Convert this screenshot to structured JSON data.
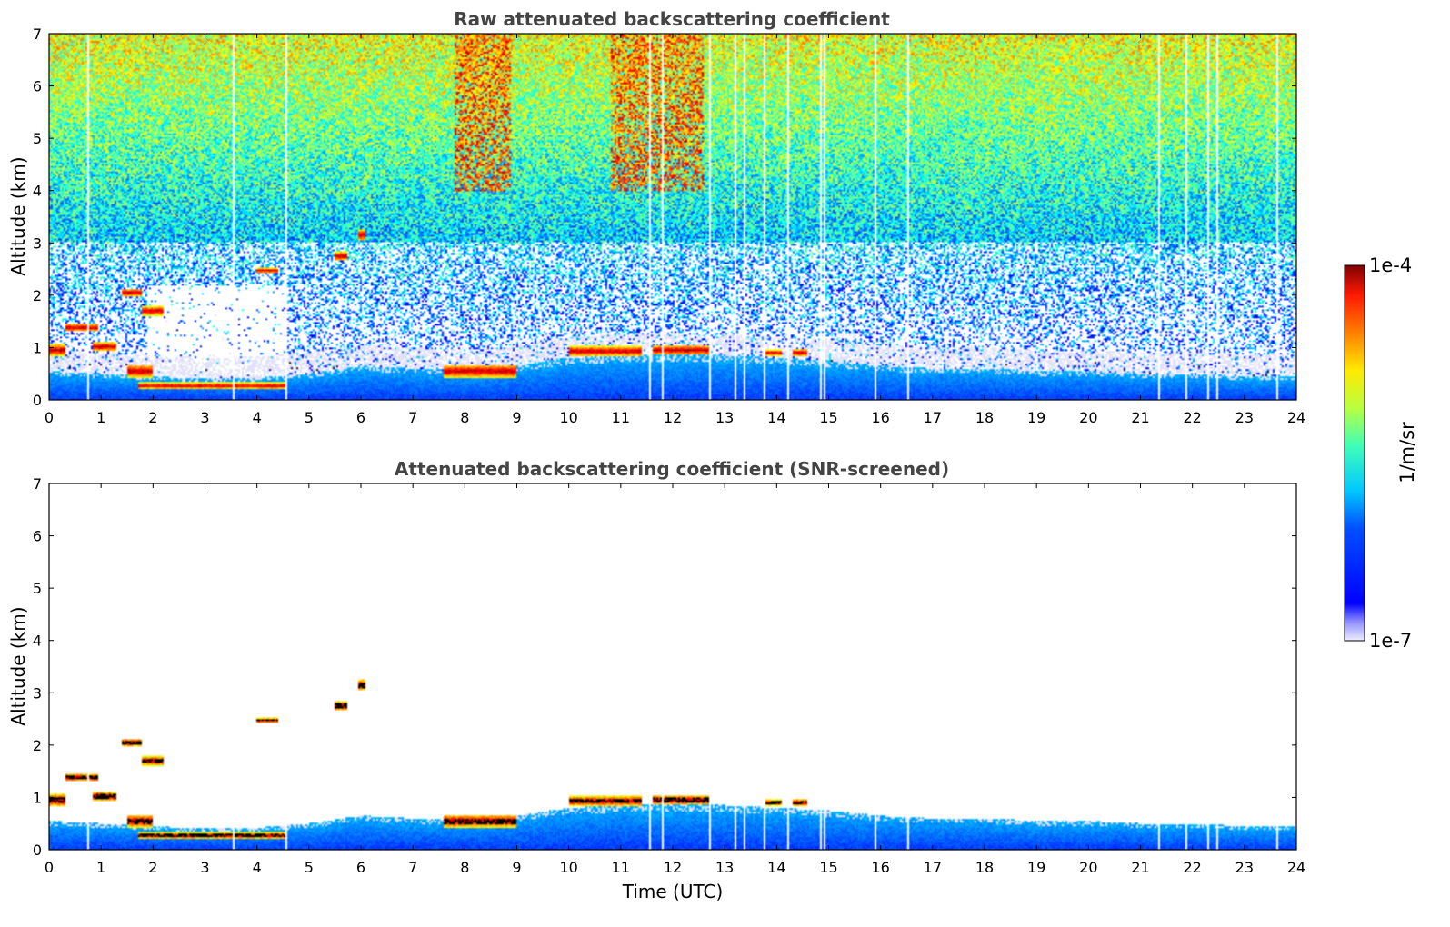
{
  "chart_data": [
    {
      "type": "heatmap",
      "title": "Raw attenuated backscattering coefficient",
      "xlabel": "",
      "ylabel": "Altitude (km)",
      "xlim": [
        0,
        24
      ],
      "ylim": [
        0,
        7
      ],
      "xticks": [
        "0",
        "1",
        "2",
        "3",
        "4",
        "5",
        "6",
        "7",
        "8",
        "9",
        "10",
        "11",
        "12",
        "13",
        "14",
        "15",
        "16",
        "17",
        "18",
        "19",
        "20",
        "21",
        "22",
        "23",
        "24"
      ],
      "yticks": [
        "0",
        "1",
        "2",
        "3",
        "4",
        "5",
        "6",
        "7"
      ],
      "noise": "high",
      "boundary_layer_top_km": [
        [
          0,
          0.55
        ],
        [
          1,
          0.5
        ],
        [
          2,
          0.45
        ],
        [
          3,
          0.4
        ],
        [
          4,
          0.42
        ],
        [
          5,
          0.5
        ],
        [
          6,
          0.65
        ],
        [
          7,
          0.6
        ],
        [
          8,
          0.55
        ],
        [
          9,
          0.65
        ],
        [
          10,
          0.8
        ],
        [
          11,
          0.85
        ],
        [
          12,
          0.85
        ],
        [
          13,
          0.85
        ],
        [
          14,
          0.8
        ],
        [
          15,
          0.75
        ],
        [
          16,
          0.65
        ],
        [
          17,
          0.6
        ],
        [
          18,
          0.6
        ],
        [
          19,
          0.55
        ],
        [
          20,
          0.55
        ],
        [
          21,
          0.5
        ],
        [
          22,
          0.5
        ],
        [
          23,
          0.45
        ],
        [
          24,
          0.45
        ]
      ],
      "cloud_layers": [
        {
          "t0": 0.0,
          "t1": 0.3,
          "z": 0.95,
          "h": 0.25
        },
        {
          "t0": 0.3,
          "t1": 0.95,
          "z": 1.38,
          "h": 0.16
        },
        {
          "t0": 0.85,
          "t1": 1.3,
          "z": 1.02,
          "h": 0.18
        },
        {
          "t0": 1.4,
          "t1": 1.8,
          "z": 2.05,
          "h": 0.16
        },
        {
          "t0": 1.8,
          "t1": 2.2,
          "z": 1.7,
          "h": 0.18
        },
        {
          "t0": 1.5,
          "t1": 2.0,
          "z": 0.55,
          "h": 0.25
        },
        {
          "t0": 1.7,
          "t1": 4.6,
          "z": 0.27,
          "h": 0.12
        },
        {
          "t0": 4.0,
          "t1": 4.4,
          "z": 2.47,
          "h": 0.1
        },
        {
          "t0": 5.5,
          "t1": 5.75,
          "z": 2.75,
          "h": 0.18
        },
        {
          "t0": 5.95,
          "t1": 6.1,
          "z": 3.15,
          "h": 0.22
        },
        {
          "t0": 7.6,
          "t1": 9.0,
          "z": 0.55,
          "h": 0.25
        },
        {
          "t0": 10.0,
          "t1": 11.4,
          "z": 0.93,
          "h": 0.2
        },
        {
          "t0": 11.6,
          "t1": 12.7,
          "z": 0.95,
          "h": 0.2
        },
        {
          "t0": 13.8,
          "t1": 14.1,
          "z": 0.9,
          "h": 0.12
        },
        {
          "t0": 14.3,
          "t1": 14.6,
          "z": 0.9,
          "h": 0.15
        }
      ],
      "gaps_h": [
        0.75,
        3.55,
        4.55,
        11.55,
        11.8,
        12.7,
        13.2,
        13.35,
        13.75,
        14.2,
        14.85,
        14.9,
        15.9,
        16.5,
        21.35,
        21.85,
        22.3,
        22.45,
        23.6
      ]
    },
    {
      "type": "heatmap",
      "title": "Attenuated backscattering coefficient (SNR-screened)",
      "xlabel": "Time (UTC)",
      "ylabel": "Altitude (km)",
      "xlim": [
        0,
        24
      ],
      "ylim": [
        0,
        7
      ],
      "xticks": [
        "0",
        "1",
        "2",
        "3",
        "4",
        "5",
        "6",
        "7",
        "8",
        "9",
        "10",
        "11",
        "12",
        "13",
        "14",
        "15",
        "16",
        "17",
        "18",
        "19",
        "20",
        "21",
        "22",
        "23",
        "24"
      ],
      "yticks": [
        "0",
        "1",
        "2",
        "3",
        "4",
        "5",
        "6",
        "7"
      ],
      "noise": "screened"
    }
  ],
  "colorbar": {
    "label": "1/m/sr",
    "max_label": "1e-4",
    "min_label": "1e-7",
    "range": [
      1e-07,
      0.0001
    ],
    "scale": "log",
    "colormap": "jet"
  }
}
